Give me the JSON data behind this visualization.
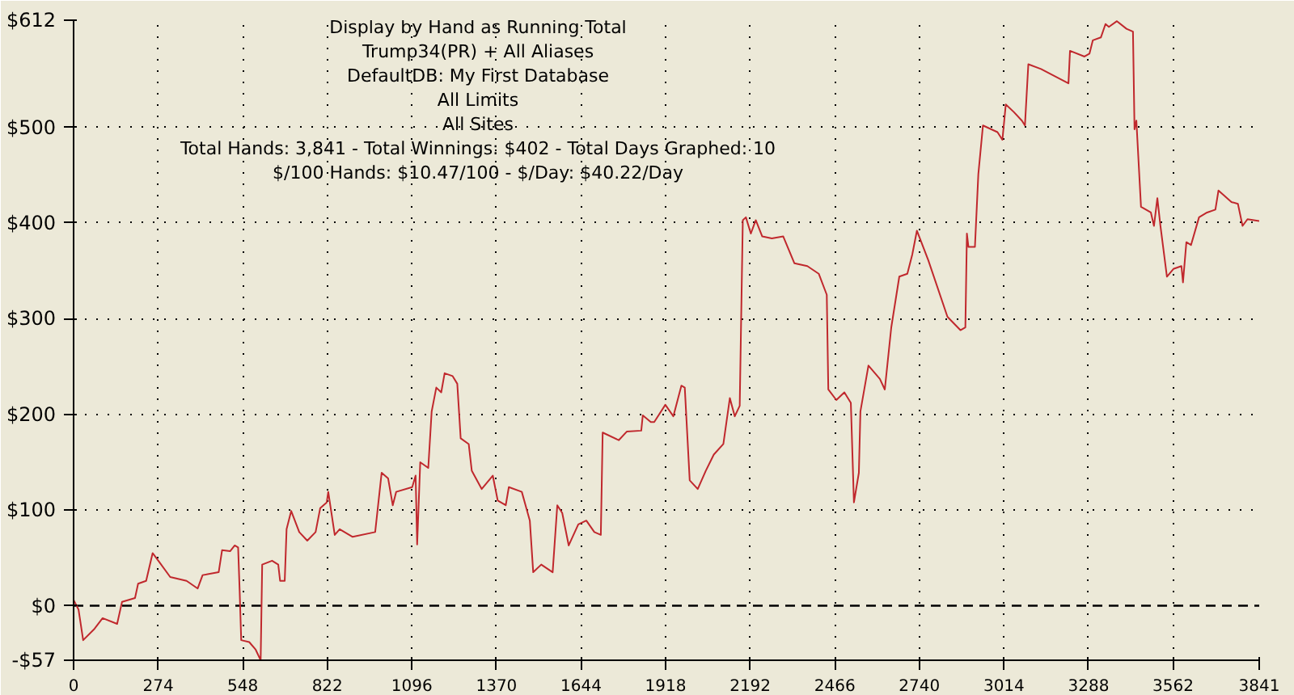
{
  "chart_data": {
    "type": "line",
    "title": "Display by Hand as Running Total",
    "annotations": [
      "Trump34(PR) + All Aliases",
      "DefaultDB: My First Database",
      "All Limits",
      "All Sites",
      "Total Hands: 3,841 - Total Winnings: $402 - Total Days Graphed: 10",
      "$/100 Hands: $10.47/100 - $/Day: $40.22/Day"
    ],
    "x": [
      0,
      16,
      31,
      68,
      94,
      141,
      157,
      199,
      209,
      235,
      256,
      277,
      313,
      366,
      402,
      418,
      470,
      481,
      507,
      522,
      533,
      538,
      543,
      569,
      590,
      606,
      611,
      643,
      663,
      669,
      684,
      690,
      705,
      731,
      757,
      784,
      799,
      820,
      825,
      846,
      862,
      904,
      977,
      998,
      1019,
      1034,
      1045,
      1097,
      1108,
      1113,
      1123,
      1149,
      1160,
      1175,
      1191,
      1202,
      1228,
      1243,
      1254,
      1280,
      1290,
      1322,
      1358,
      1374,
      1400,
      1410,
      1452,
      1478,
      1489,
      1515,
      1552,
      1567,
      1583,
      1604,
      1635,
      1661,
      1687,
      1708,
      1714,
      1766,
      1792,
      1839,
      1844,
      1870,
      1881,
      1917,
      1943,
      1969,
      1980,
      1996,
      2022,
      2048,
      2074,
      2105,
      2126,
      2142,
      2158,
      2168,
      2178,
      2194,
      2210,
      2231,
      2262,
      2299,
      2335,
      2377,
      2414,
      2440,
      2445,
      2471,
      2497,
      2518,
      2528,
      2544,
      2549,
      2575,
      2612,
      2628,
      2649,
      2675,
      2701,
      2717,
      2732,
      2769,
      2831,
      2873,
      2889,
      2894,
      2899,
      2920,
      2931,
      2946,
      2993,
      3009,
      3020,
      3046,
      3072,
      3082,
      3093,
      3134,
      3223,
      3228,
      3275,
      3291,
      3302,
      3328,
      3343,
      3354,
      3380,
      3411,
      3432,
      3437,
      3443,
      3458,
      3490,
      3500,
      3511,
      3521,
      3542,
      3563,
      3589,
      3594,
      3605,
      3620,
      3646,
      3672,
      3699,
      3709,
      3751,
      3772,
      3787,
      3803,
      3841
    ],
    "series": [
      {
        "color": "#c0282d",
        "values": [
          6,
          -4,
          -36,
          -24,
          -13,
          -19,
          4,
          8,
          23,
          26,
          55,
          46,
          30,
          26,
          18,
          32,
          35,
          58,
          57,
          63,
          61,
          15,
          -36,
          -38,
          -46,
          -57,
          43,
          47,
          43,
          26,
          26,
          80,
          99,
          77,
          68,
          77,
          102,
          108,
          119,
          74,
          80,
          72,
          77,
          139,
          133,
          105,
          119,
          124,
          136,
          64,
          150,
          144,
          203,
          228,
          223,
          243,
          240,
          232,
          175,
          169,
          141,
          122,
          136,
          110,
          105,
          124,
          119,
          89,
          35,
          43,
          35,
          105,
          97,
          63,
          85,
          89,
          77,
          74,
          181,
          173,
          182,
          183,
          199,
          192,
          192,
          210,
          198,
          230,
          228,
          131,
          122,
          141,
          158,
          169,
          217,
          198,
          209,
          403,
          406,
          389,
          403,
          386,
          384,
          386,
          358,
          355,
          347,
          325,
          226,
          215,
          223,
          212,
          108,
          139,
          203,
          251,
          237,
          226,
          291,
          344,
          347,
          367,
          392,
          361,
          302,
          288,
          291,
          389,
          375,
          375,
          451,
          502,
          495,
          487,
          524,
          516,
          507,
          502,
          566,
          561,
          546,
          580,
          574,
          577,
          591,
          594,
          608,
          605,
          611,
          603,
          600,
          498,
          507,
          417,
          411,
          397,
          426,
          397,
          344,
          352,
          355,
          338,
          380,
          377,
          406,
          411,
          414,
          434,
          422,
          420,
          397,
          404,
          402
        ]
      }
    ],
    "xlim": [
      0,
      3841
    ],
    "ylim": [
      -57,
      612
    ],
    "xticks": [
      0,
      274,
      548,
      822,
      1096,
      1370,
      1644,
      1918,
      2192,
      2466,
      2740,
      3014,
      3288,
      3562,
      3841
    ],
    "yticks": [
      {
        "value": -57,
        "label": "-$57"
      },
      {
        "value": 0,
        "label": "$0"
      },
      {
        "value": 100,
        "label": "$100"
      },
      {
        "value": 200,
        "label": "$200"
      },
      {
        "value": 300,
        "label": "$300"
      },
      {
        "value": 400,
        "label": "$400"
      },
      {
        "value": 500,
        "label": "$500"
      },
      {
        "value": 612,
        "label": "$612"
      }
    ],
    "ref_lines": [
      {
        "axis": "y",
        "value": 0,
        "line_style": "dashed",
        "color": "#000000"
      }
    ],
    "grid": true,
    "line_style": "solid",
    "marker": "none"
  }
}
